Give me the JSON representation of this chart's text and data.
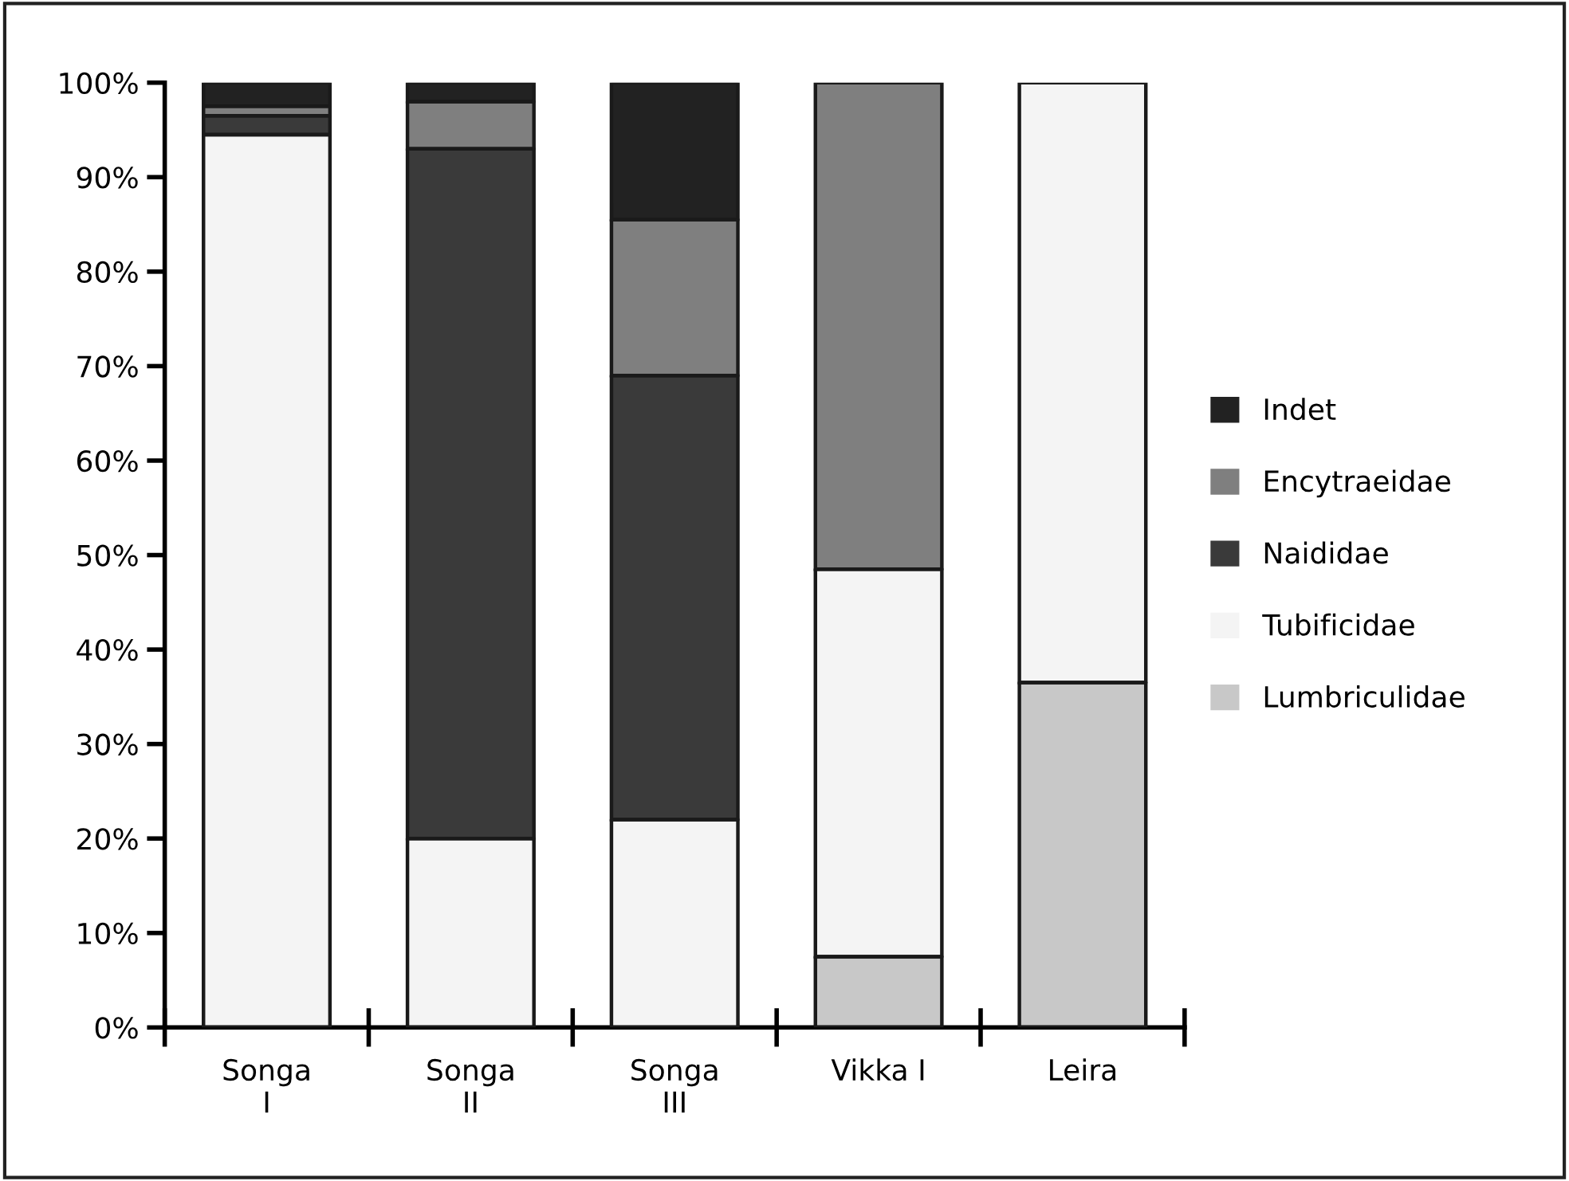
{
  "chart_data": {
    "type": "bar",
    "stacked": true,
    "categories": [
      "Songa\nI",
      "Songa\nII",
      "Songa\nIII",
      "Vikka I",
      "Leira"
    ],
    "series": [
      {
        "name": "Lumbriculidae",
        "color": "#c8c8c8",
        "values": [
          null,
          null,
          null,
          7.5,
          36.5
        ]
      },
      {
        "name": "Tubificidae",
        "color": "#f4f4f4",
        "values": [
          94.5,
          20,
          22,
          41,
          63.5
        ]
      },
      {
        "name": "Naididae",
        "color": "#3a3a3a",
        "values": [
          2,
          73,
          47,
          null,
          null
        ]
      },
      {
        "name": "Encytraeidae",
        "color": "#7f7f7f",
        "values": [
          1,
          5,
          16.5,
          51.5,
          null
        ]
      },
      {
        "name": "Indet",
        "color": "#222222",
        "values": [
          2.5,
          2,
          14.5,
          null,
          null
        ]
      }
    ],
    "ylim": [
      0,
      100
    ],
    "yticks": [
      {
        "value": 0,
        "label": "0%"
      },
      {
        "value": 10,
        "label": "10%"
      },
      {
        "value": 20,
        "label": "20%"
      },
      {
        "value": 30,
        "label": "30%"
      },
      {
        "value": 40,
        "label": "40%"
      },
      {
        "value": 50,
        "label": "50%"
      },
      {
        "value": 60,
        "label": "60%"
      },
      {
        "value": 70,
        "label": "70%"
      },
      {
        "value": 80,
        "label": "80%"
      },
      {
        "value": 90,
        "label": "90%"
      },
      {
        "value": 100,
        "label": "100%"
      }
    ],
    "grid": false,
    "legend": "right"
  }
}
